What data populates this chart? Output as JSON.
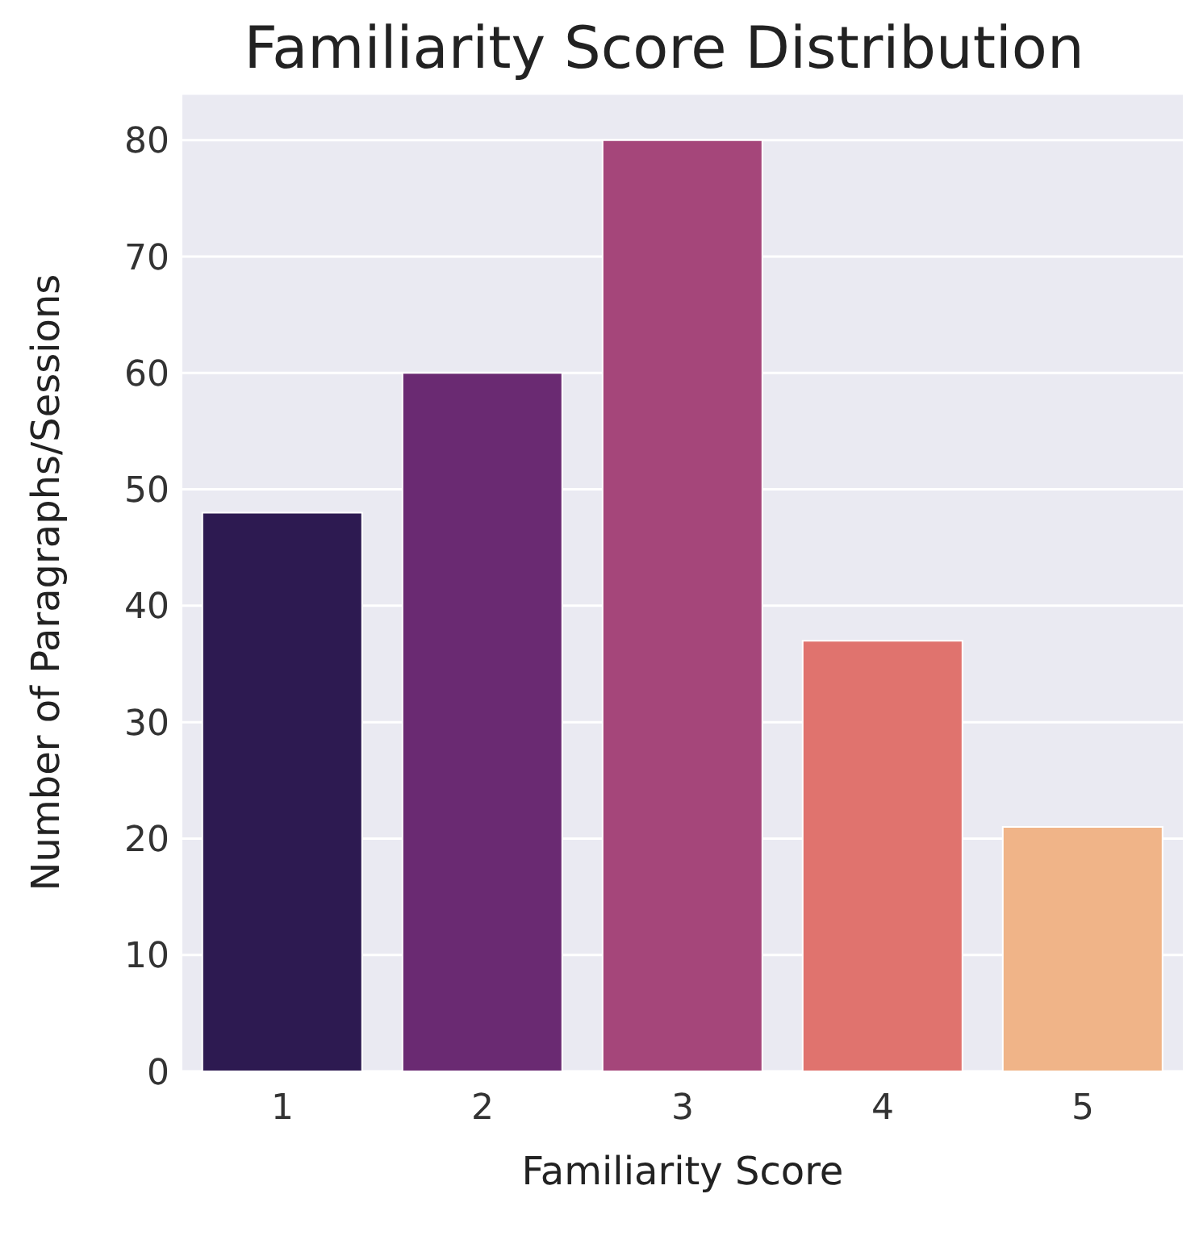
{
  "chart_data": {
    "type": "bar",
    "title": "Familiarity Score Distribution",
    "xlabel": "Familiarity Score",
    "ylabel": "Number of Paragraphs/Sessions",
    "categories": [
      "1",
      "2",
      "3",
      "4",
      "5"
    ],
    "values": [
      48,
      60,
      80,
      37,
      21
    ],
    "colors": [
      "#2d1a51",
      "#6a2a72",
      "#a5467a",
      "#e0736e",
      "#f0b488"
    ],
    "ylim": [
      0,
      84
    ],
    "yticks": [
      0,
      10,
      20,
      30,
      40,
      50,
      60,
      70,
      80
    ],
    "grid": "y"
  }
}
